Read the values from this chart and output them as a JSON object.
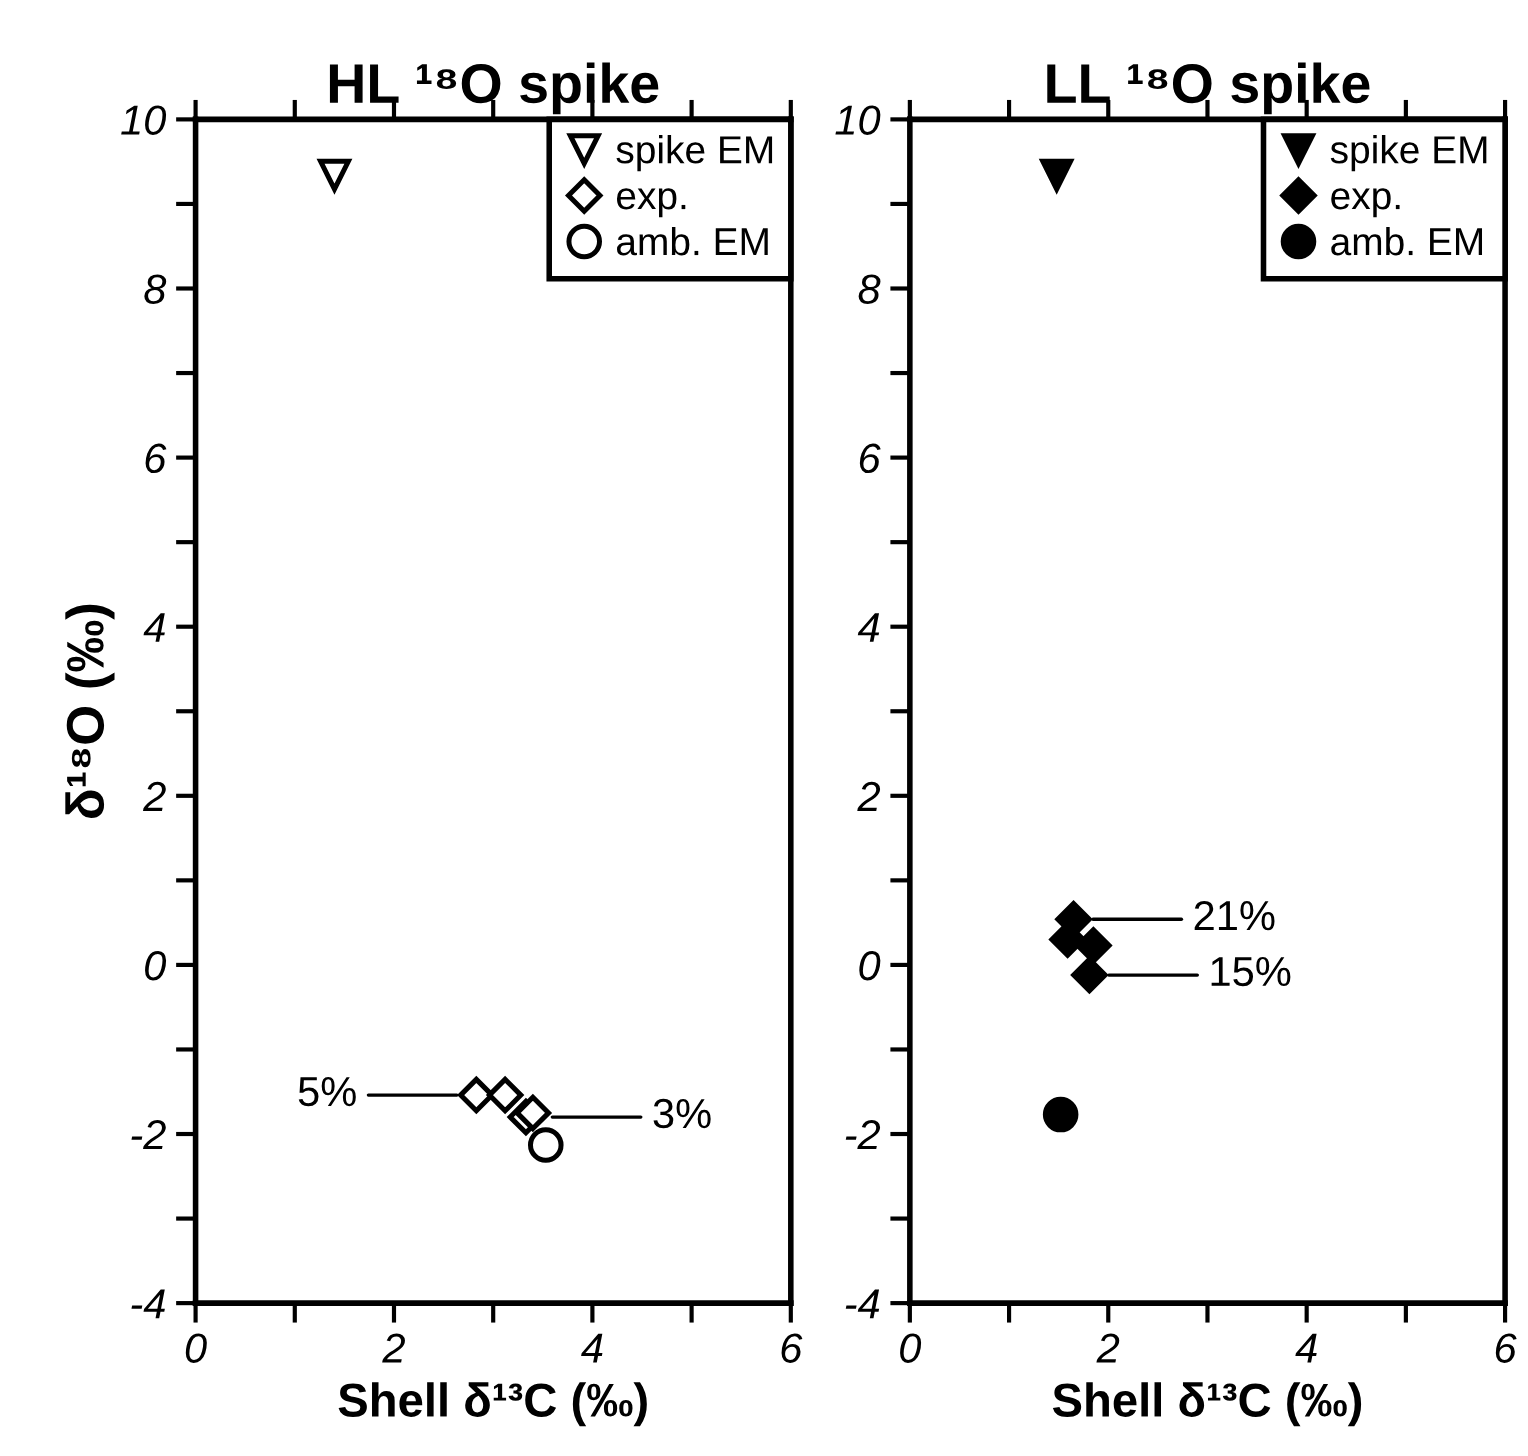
{
  "chart_data": [
    {
      "type": "scatter",
      "title": "HL ¹⁸O spike",
      "xlabel": "Shell δ¹³C (‰)",
      "ylabel": "δ¹⁸O (‰)",
      "xlim": [
        0,
        6
      ],
      "ylim": [
        -4,
        10
      ],
      "xticks": [
        0,
        {
          "value": 1,
          "label": null
        },
        2,
        {
          "value": 3,
          "label": null
        },
        4,
        {
          "value": 5,
          "label": null
        },
        6
      ],
      "yticks": [
        -4,
        {
          "value": -3,
          "label": null
        },
        -2,
        {
          "value": -1,
          "label": null
        },
        0,
        {
          "value": 1,
          "label": null
        },
        2,
        {
          "value": 3,
          "label": null
        },
        4,
        {
          "value": 5,
          "label": null
        },
        6,
        {
          "value": 7,
          "label": null
        },
        8,
        {
          "value": 9,
          "label": null
        },
        10
      ],
      "grid": false,
      "legend": "top right",
      "series": [
        {
          "name": "spike EM",
          "marker": "triangle",
          "color": "#ffffff",
          "x": [
            1.4
          ],
          "values": [
            9.34
          ]
        },
        {
          "name": "exp.",
          "marker": "diamond",
          "color": "#ffffff",
          "x": [
            2.83,
            3.12,
            3.33,
            3.4
          ],
          "values": [
            -1.54,
            -1.54,
            -1.8,
            -1.75
          ]
        },
        {
          "name": "amb. EM",
          "marker": "circle",
          "color": "#ffffff",
          "x": [
            3.53
          ],
          "values": [
            -2.13
          ]
        }
      ],
      "annotations": [
        {
          "text": "5%",
          "x": 2.83,
          "y": -1.54
        },
        {
          "text": "3%",
          "x": 3.4,
          "y": -1.8
        }
      ]
    },
    {
      "type": "scatter",
      "title": "LL ¹⁸O spike",
      "xlabel": "Shell δ¹³C (‰)",
      "xlim": [
        0,
        6
      ],
      "ylim": [
        -4,
        10
      ],
      "xticks": [
        0,
        {
          "value": 1,
          "label": null
        },
        2,
        {
          "value": 3,
          "label": null
        },
        4,
        {
          "value": 5,
          "label": null
        },
        6
      ],
      "yticks": [
        -4,
        {
          "value": -3,
          "label": null
        },
        -2,
        {
          "value": -1,
          "label": null
        },
        0,
        {
          "value": 1,
          "label": null
        },
        2,
        {
          "value": 3,
          "label": null
        },
        4,
        {
          "value": 5,
          "label": null
        },
        6,
        {
          "value": 7,
          "label": null
        },
        8,
        {
          "value": 9,
          "label": null
        },
        10
      ],
      "grid": false,
      "legend": "top right",
      "series": [
        {
          "name": "spike EM",
          "marker": "triangle",
          "color": "#000000",
          "x": [
            1.48
          ],
          "values": [
            9.34
          ]
        },
        {
          "name": "exp.",
          "marker": "diamond",
          "color": "#000000",
          "x": [
            1.65,
            1.59,
            1.85,
            1.81
          ],
          "values": [
            0.54,
            0.3,
            0.23,
            -0.12
          ]
        },
        {
          "name": "amb. EM",
          "marker": "circle",
          "color": "#000000",
          "x": [
            1.52
          ],
          "values": [
            -1.77
          ]
        }
      ],
      "annotations": [
        {
          "text": "21%",
          "x": 1.65,
          "y": 0.54
        },
        {
          "text": "15%",
          "x": 1.81,
          "y": -0.12
        }
      ]
    }
  ]
}
